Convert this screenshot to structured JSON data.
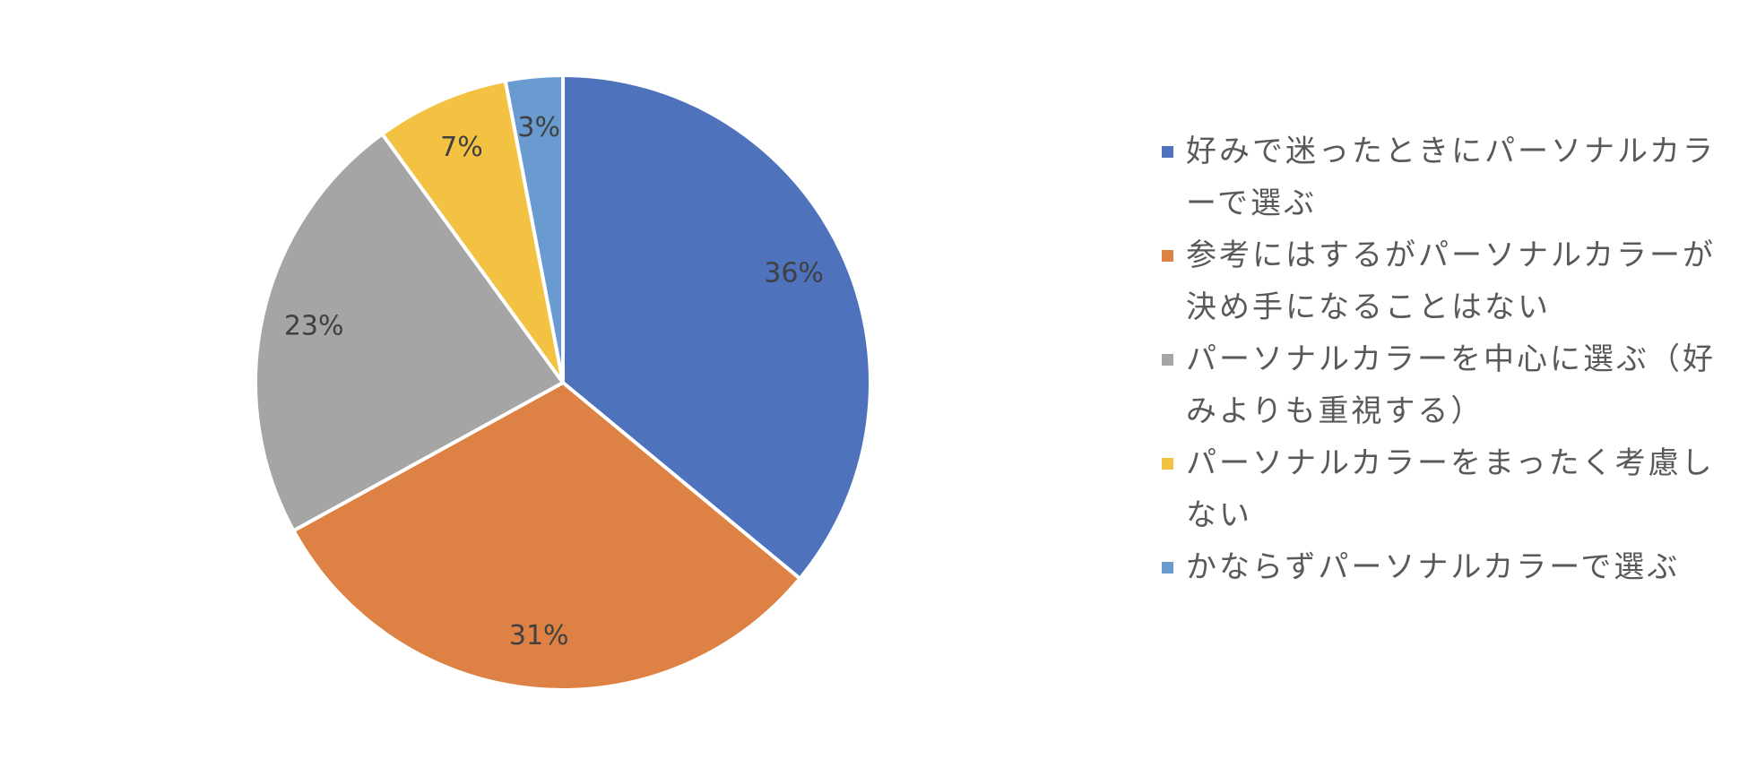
{
  "chart_data": {
    "type": "pie",
    "categories": [
      "好みで迷ったときにパーソナルカラーで選ぶ",
      "参考にはするがパーソナルカラーが決め手になることはない",
      "パーソナルカラーを中心に選ぶ（好みよりも重視する）",
      "パーソナルカラーをまったく考慮しない",
      "かならずパーソナルカラーで選ぶ"
    ],
    "values": [
      36,
      31,
      23,
      7,
      3
    ],
    "value_labels": [
      "36%",
      "31%",
      "23%",
      "7%",
      "3%"
    ],
    "colors": [
      "#4e72bc",
      "#dd8244",
      "#a5a5a5",
      "#f4c242",
      "#6a9bd0"
    ],
    "legend": "right"
  }
}
